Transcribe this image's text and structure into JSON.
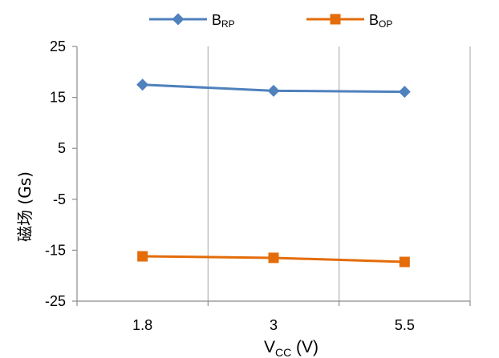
{
  "chart_data": {
    "type": "line",
    "categories": [
      "1.8",
      "3",
      "5.5"
    ],
    "series": [
      {
        "name": "B",
        "name_sub": "RP",
        "color": "#4f81bd",
        "marker": "diamond",
        "values": [
          17.5,
          16.3,
          16.1
        ]
      },
      {
        "name": "B",
        "name_sub": "OP",
        "color": "#e46c0a",
        "marker": "square",
        "values": [
          -16.2,
          -16.5,
          -17.3
        ]
      }
    ],
    "ylim": [
      -25,
      25
    ],
    "yticks": [
      25,
      15,
      5,
      -5,
      -15,
      -25
    ],
    "ylabel": "磁场 (Gs)",
    "xlabel_main": "V",
    "xlabel_sub": "CC",
    "xlabel_unit": " (V)",
    "grid": "vertical",
    "legend": "top"
  }
}
